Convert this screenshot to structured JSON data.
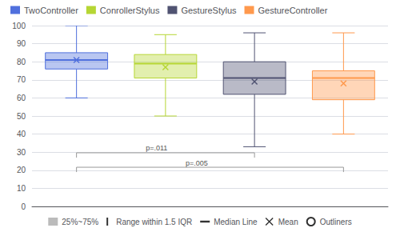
{
  "chart_data": {
    "type": "box",
    "series": [
      {
        "name": "TwoController",
        "q1": 76,
        "median": 81,
        "q3": 85,
        "whisker_low": 60,
        "whisker_high": 100,
        "mean": 81,
        "outliers": []
      },
      {
        "name": "ConrollerStylus",
        "q1": 71,
        "median": 79,
        "q3": 84,
        "whisker_low": 50,
        "whisker_high": 95,
        "mean": 77,
        "outliers": []
      },
      {
        "name": "GestureStylus",
        "q1": 62,
        "median": 71,
        "q3": 80,
        "whisker_low": 33,
        "whisker_high": 96,
        "mean": 69,
        "outliers": []
      },
      {
        "name": "GestureController",
        "q1": 59,
        "median": 71,
        "q3": 75,
        "whisker_low": 40,
        "whisker_high": 96,
        "mean": 68,
        "outliers": []
      }
    ],
    "key": [
      {
        "label": "25%~75%",
        "marker": "box"
      },
      {
        "label": "Range within 1.5 IQR",
        "marker": "whisker"
      },
      {
        "label": "Median Line",
        "marker": "line"
      },
      {
        "label": "Mean",
        "marker": "x"
      },
      {
        "label": "Outliners",
        "marker": "circle"
      }
    ],
    "annotations": [
      {
        "text": "p=.011",
        "from": "TwoController",
        "to": "GestureStylus",
        "y": 27
      },
      {
        "text": "p=.005",
        "from": "TwoController",
        "to": "GestureController",
        "y": 19
      }
    ],
    "ylim": [
      0,
      100
    ],
    "yticks": [
      0,
      10,
      20,
      30,
      40,
      50,
      60,
      70,
      80,
      90,
      100
    ],
    "grid": true,
    "tick_labels": "y",
    "legend": "upper left"
  }
}
